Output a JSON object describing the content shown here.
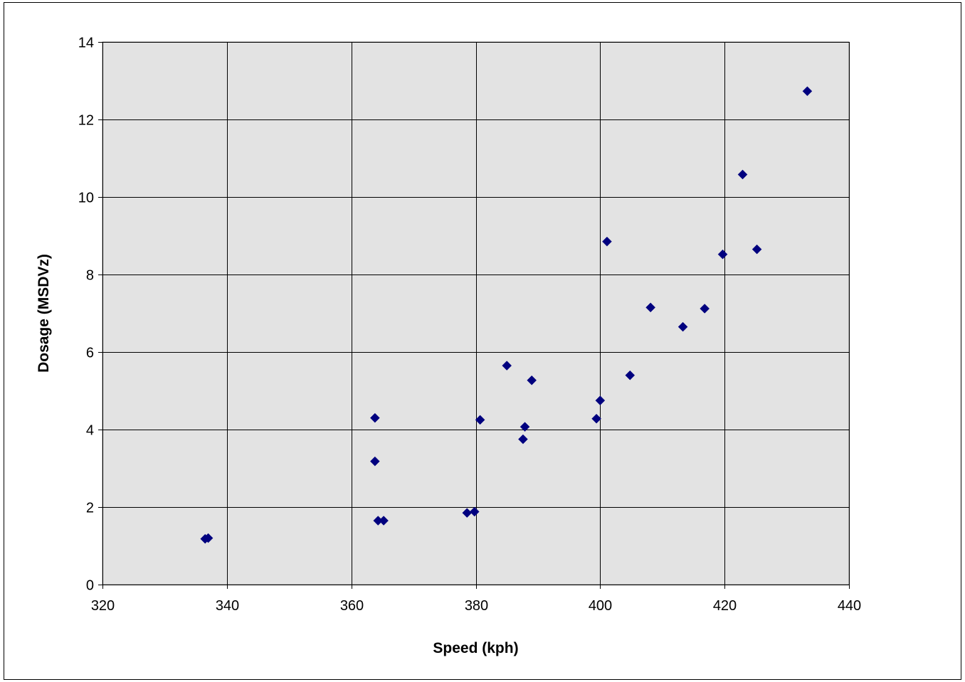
{
  "chart_data": {
    "type": "scatter",
    "title": "",
    "xlabel": "Speed (kph)",
    "ylabel": "Dosage (MSDVz)",
    "xlim": [
      320,
      440
    ],
    "ylim": [
      0,
      14
    ],
    "x_ticks": [
      320,
      340,
      360,
      380,
      400,
      420,
      440
    ],
    "y_ticks": [
      0,
      2,
      4,
      6,
      8,
      10,
      12,
      14
    ],
    "grid": true,
    "legend": "none",
    "plot_background": "#e3e3e3",
    "marker": "diamond",
    "series": [
      {
        "color": "#00007f",
        "points": [
          {
            "x": 336.5,
            "y": 1.18
          },
          {
            "x": 337.0,
            "y": 1.2
          },
          {
            "x": 363.8,
            "y": 4.3
          },
          {
            "x": 363.8,
            "y": 3.18
          },
          {
            "x": 364.3,
            "y": 1.65
          },
          {
            "x": 365.2,
            "y": 1.65
          },
          {
            "x": 378.6,
            "y": 1.85
          },
          {
            "x": 379.8,
            "y": 1.88
          },
          {
            "x": 380.7,
            "y": 4.25
          },
          {
            "x": 385.0,
            "y": 5.65
          },
          {
            "x": 387.6,
            "y": 3.75
          },
          {
            "x": 387.9,
            "y": 4.07
          },
          {
            "x": 389.0,
            "y": 5.27
          },
          {
            "x": 399.4,
            "y": 4.28
          },
          {
            "x": 400.0,
            "y": 4.75
          },
          {
            "x": 401.1,
            "y": 8.85
          },
          {
            "x": 404.8,
            "y": 5.4
          },
          {
            "x": 408.1,
            "y": 7.15
          },
          {
            "x": 413.3,
            "y": 6.65
          },
          {
            "x": 416.8,
            "y": 7.12
          },
          {
            "x": 419.7,
            "y": 8.52
          },
          {
            "x": 422.9,
            "y": 10.58
          },
          {
            "x": 425.2,
            "y": 8.65
          },
          {
            "x": 433.3,
            "y": 12.73
          }
        ]
      }
    ]
  }
}
